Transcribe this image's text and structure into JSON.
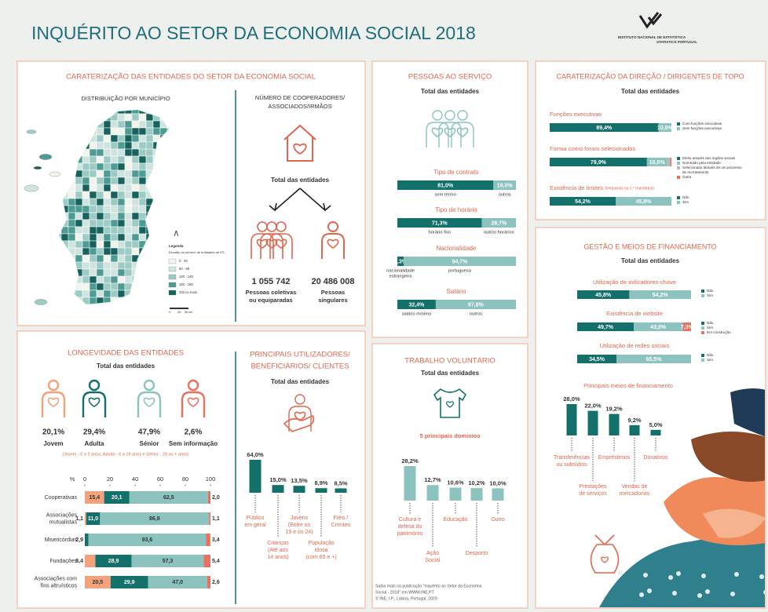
{
  "header": {
    "title": "INQUÉRITO AO SETOR DA ECONOMIA SOCIAL 2018",
    "institute": "INSTITUTO NACIONAL DE ESTATÍSTICA",
    "institute_en": "STATISTICS PORTUGAL"
  },
  "entities": {
    "title": "CARATERIZAÇÃO DAS ENTIDADES DO SETOR DA ECONOMIA SOCIAL",
    "map_title": "DISTRIBUIÇÃO POR MUNICÍPIO",
    "legend_title": "Legenda",
    "legend_subtitle": "Escalão do número de entidades de ES",
    "legend": [
      {
        "label": "0 - 49",
        "color": "#f1f4ec"
      },
      {
        "label": "50 - 99",
        "color": "#cfe4df"
      },
      {
        "label": "100 - 149",
        "color": "#9ccac4"
      },
      {
        "label": "150 - 199",
        "color": "#4e9b94"
      },
      {
        "label": "200 ou mais",
        "color": "#17625d"
      }
    ],
    "scale_labels": [
      "0",
      "25",
      "50 km"
    ],
    "members_title": [
      "NÚMERO DE COOPERADORES/",
      "ASSOCIADOS/IRMÃOS"
    ],
    "subtitle": "Total das entidades",
    "members": [
      {
        "value": "1 055 742",
        "label": [
          "Pessoas coletivas",
          "ou equiparadas"
        ]
      },
      {
        "value": "20 486 008",
        "label": [
          "Pessoas",
          "singulares"
        ]
      }
    ]
  },
  "longevity": {
    "title": "LONGEVIDADE DAS ENTIDADES",
    "subtitle": "Total das entidades",
    "groups": [
      {
        "name": "Jovem",
        "value": 20.1,
        "value_label": "20,1%",
        "color": "#f4a27c"
      },
      {
        "name": "Adulta",
        "value": 29.4,
        "value_label": "29,4%",
        "color": "#14706b"
      },
      {
        "name": "Sénior",
        "value": 47.9,
        "value_label": "47,9%",
        "color": "#8cc3bf"
      },
      {
        "name": "Sem informação",
        "value": 2.6,
        "value_label": "2,6%",
        "color": "#e9715f"
      }
    ],
    "note": "(Jovem - 0 a 5 anos; Adulta - 6 a 19 anos e Sénior - 20 ou + anos)",
    "chart": {
      "type": "bar",
      "orientation": "horizontal",
      "stacked": true,
      "axis_label": "%",
      "xlim": [
        0,
        100
      ],
      "xticks": [
        0,
        20,
        40,
        60,
        80,
        100
      ],
      "categories": [
        [
          "Cooperativas"
        ],
        [
          "Associações",
          "mutualistas"
        ],
        [
          "Misericórdias"
        ],
        [
          "Fundações"
        ],
        [
          "Associações com",
          "fins altruísticos"
        ]
      ],
      "series": [
        {
          "values": [
            15.4,
            1.1,
            null,
            8.4,
            20.5
          ],
          "value_labels": [
            "15,4",
            "1,1",
            null,
            "8,4",
            "20,5"
          ]
        },
        {
          "values": [
            20.1,
            11.0,
            2.9,
            28.9,
            29.9
          ],
          "value_labels": [
            "20,1",
            "11,0",
            "2,9",
            "28,9",
            "29,9"
          ]
        },
        {
          "values": [
            62.5,
            86.8,
            93.6,
            57.3,
            47.0
          ],
          "value_labels": [
            "62,5",
            "86,8",
            "93,6",
            "57,3",
            "47,0"
          ]
        },
        {
          "values": [
            2.0,
            1.1,
            3.4,
            5.4,
            2.6
          ],
          "value_labels": [
            "2,0",
            "1,1",
            "3,4",
            "5,4",
            "2,6"
          ]
        }
      ]
    }
  },
  "beneficiaries": {
    "title": [
      "PRINCIPAIS UTILIZADORES/",
      "BENEFICIÁRIOS/ CLIENTES"
    ],
    "subtitle": "Total das entidades",
    "color": "#14706b",
    "categories": [
      [
        "Público",
        "em geral"
      ],
      [
        "Crianças",
        "(Até aos",
        "14 anos)"
      ],
      [
        "Jovens",
        "(Entre os",
        "15 e os 24)"
      ],
      [
        "População",
        "idosa",
        "(com 65 e +)"
      ],
      [
        "Fiéis /",
        "Crentes"
      ]
    ],
    "values": [
      64.0,
      15.0,
      13.5,
      8.9,
      8.5
    ],
    "value_labels": [
      "64,0%",
      "15,0%",
      "13,5%",
      "8,9%",
      "8,5%"
    ]
  },
  "staff": {
    "title": "PESSOAS AO SERVIÇO",
    "subtitle": "Total das entidades",
    "colors": [
      "#14706b",
      "#8cc3bf"
    ],
    "blocks": [
      {
        "title": "Tipo de contrato",
        "values": [
          81.0,
          19.0
        ],
        "value_labels": [
          "81,0%",
          "19,0%"
        ],
        "names": [
          [
            "sem termo"
          ],
          [
            "outros"
          ]
        ]
      },
      {
        "title": "Tipo de horário",
        "values": [
          71.3,
          28.7
        ],
        "value_labels": [
          "71,3%",
          "28,7%"
        ],
        "names": [
          [
            "horário fixo"
          ],
          [
            "outros horários"
          ]
        ]
      },
      {
        "title": "Nacionalidade",
        "values": [
          5.3,
          94.7
        ],
        "value_labels": [
          "5,3%",
          "94,7%"
        ],
        "names": [
          [
            "nacionalidade",
            "estrangeira"
          ],
          [
            "portuguesa"
          ]
        ]
      },
      {
        "title": "Salário",
        "values": [
          32.4,
          67.6
        ],
        "value_labels": [
          "32,4%",
          "67,6%"
        ],
        "names": [
          [
            "salário mínimo"
          ],
          [
            "outros"
          ]
        ]
      }
    ]
  },
  "volunteer": {
    "title": "TRABALHO VOLUNTÁRIO",
    "subtitle": "Total das entidades",
    "domains_title": "5 principais domínios",
    "color": "#8cc3bf",
    "categories": [
      [
        "Cultura e",
        "defesa do",
        "património"
      ],
      [
        "Ação",
        "Social"
      ],
      [
        "Educação"
      ],
      [
        "Desporto"
      ],
      [
        "Outro"
      ]
    ],
    "values": [
      28.2,
      12.7,
      10.6,
      10.2,
      10.0
    ],
    "value_labels": [
      "28,2%",
      "12,7%",
      "10,6%",
      "10,2%",
      "10,0%"
    ]
  },
  "footer": {
    "lines": [
      "Saiba mais na publicação \"Inquérito ao Setor da Economia",
      "Social - 2018\" em WWW.INE.PT",
      "© INE, I.P., Lisboa, Portugal, 2020"
    ]
  },
  "direction": {
    "title": "CARATERIZAÇÃO DA DIREÇÃO / DIRIGENTES DE TOPO",
    "subtitle": "Total das entidades",
    "blocks": [
      {
        "title": "Funções executivas",
        "values": [
          89.4,
          10.6
        ],
        "value_labels": [
          "89,4%",
          "10,6%"
        ],
        "colors": [
          "#14706b",
          "#8cc3bf"
        ],
        "legend": [
          [
            "Com funções executivas"
          ],
          [
            "Sem funções executivas"
          ]
        ]
      },
      {
        "title": "Forma como foram selecionados",
        "values": [
          79.9,
          16.6,
          2.4,
          1.1
        ],
        "value_labels": [
          "79,9%",
          "16,6%",
          null,
          null
        ],
        "colors": [
          "#14706b",
          "#8cc3bf",
          "#b8bdbc",
          "#e9715f"
        ],
        "legend": [
          [
            "Eleito através dos órgãos sociais"
          ],
          [
            "Nomeado pela entidade"
          ],
          [
            "Selecionado através de um processo",
            "de recrutamento"
          ],
          [
            "Outra"
          ]
        ]
      },
      {
        "title": "Existência de limites",
        "title_note": "(temporais ou n.º mandatos)",
        "values": [
          54.2,
          45.8
        ],
        "value_labels": [
          "54,2%",
          "45,8%"
        ],
        "colors": [
          "#14706b",
          "#8cc3bf"
        ],
        "legend": [
          [
            "Não"
          ],
          [
            "Sim"
          ]
        ]
      }
    ]
  },
  "management": {
    "title": "GESTÃO E MEIOS DE FINANCIAMENTO",
    "subtitle": "Total das entidades",
    "blocks": [
      {
        "title": "Utilização de indicadores-chave",
        "values": [
          45.8,
          54.2
        ],
        "value_labels": [
          "45,8%",
          "54,2%"
        ],
        "colors": [
          "#14706b",
          "#8cc3bf"
        ],
        "legend": [
          [
            "Não"
          ],
          [
            "Sim"
          ]
        ]
      },
      {
        "title": "Existência de website",
        "values": [
          49.7,
          43.0,
          7.3
        ],
        "value_labels": [
          "49,7%",
          "43,0%",
          "7,3%"
        ],
        "colors": [
          "#14706b",
          "#8cc3bf",
          "#e9715f"
        ],
        "legend": [
          [
            "Não"
          ],
          [
            "Sim"
          ],
          [
            "Em construção"
          ]
        ]
      },
      {
        "title": "Utilização de redes sociais",
        "values": [
          34.5,
          65.5
        ],
        "value_labels": [
          "34,5%",
          "65,5%"
        ],
        "colors": [
          "#14706b",
          "#8cc3bf"
        ],
        "legend": [
          [
            "Não"
          ],
          [
            "Sim"
          ]
        ]
      }
    ],
    "funding": {
      "title": "Principais meios de financiamento",
      "color": "#14706b",
      "categories": [
        [
          "Transferências",
          "ou subsídios"
        ],
        [
          "Prestações",
          "de serviços"
        ],
        [
          "Empréstimos"
        ],
        [
          "Vendas de",
          "mercadorias"
        ],
        [
          "Donativos"
        ]
      ],
      "values": [
        28.0,
        22.0,
        19.2,
        9.2,
        5.0
      ],
      "value_labels": [
        "28,0%",
        "22,0%",
        "19,2%",
        "9,2%",
        "5,0%"
      ]
    }
  }
}
